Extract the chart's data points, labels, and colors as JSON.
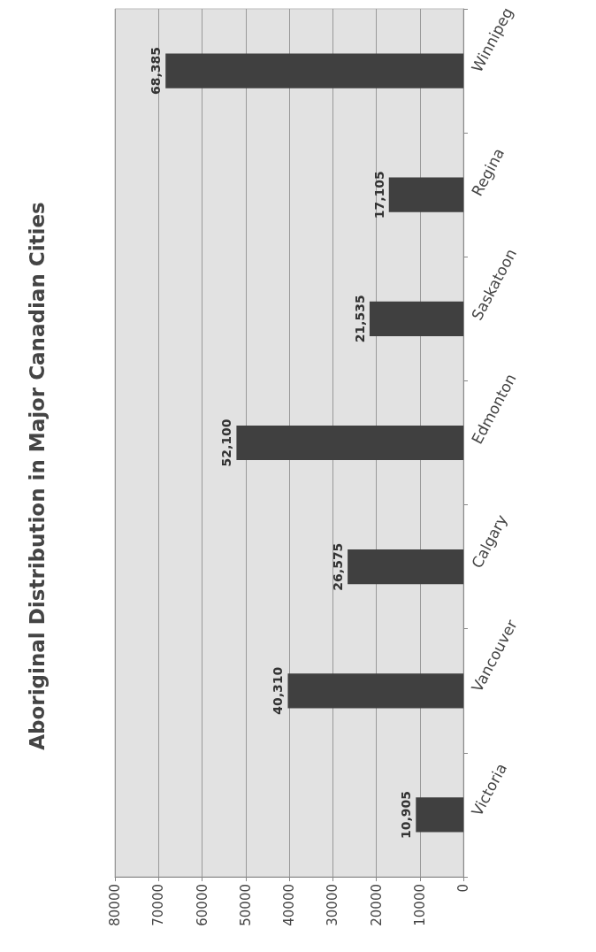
{
  "chart_data": {
    "type": "bar",
    "orientation": "horizontal",
    "title": "Aboriginal Distribution in Major Canadian Cities",
    "categories": [
      "Winnipeg",
      "Regina",
      "Saskatoon",
      "Edmonton",
      "Calgary",
      "Vancouver",
      "Victoria"
    ],
    "values": [
      68385,
      17105,
      21535,
      52100,
      26575,
      40310,
      10905
    ],
    "color": "#404040",
    "xlim": [
      80000,
      0
    ],
    "xticks": [
      80000,
      70000,
      60000,
      50000,
      40000,
      30000,
      20000,
      10000,
      0
    ],
    "value_labels": [
      "68,385",
      "17,105",
      "21,535",
      "52,100",
      "26,575",
      "40,310",
      "10,905"
    ],
    "grid": "x"
  }
}
